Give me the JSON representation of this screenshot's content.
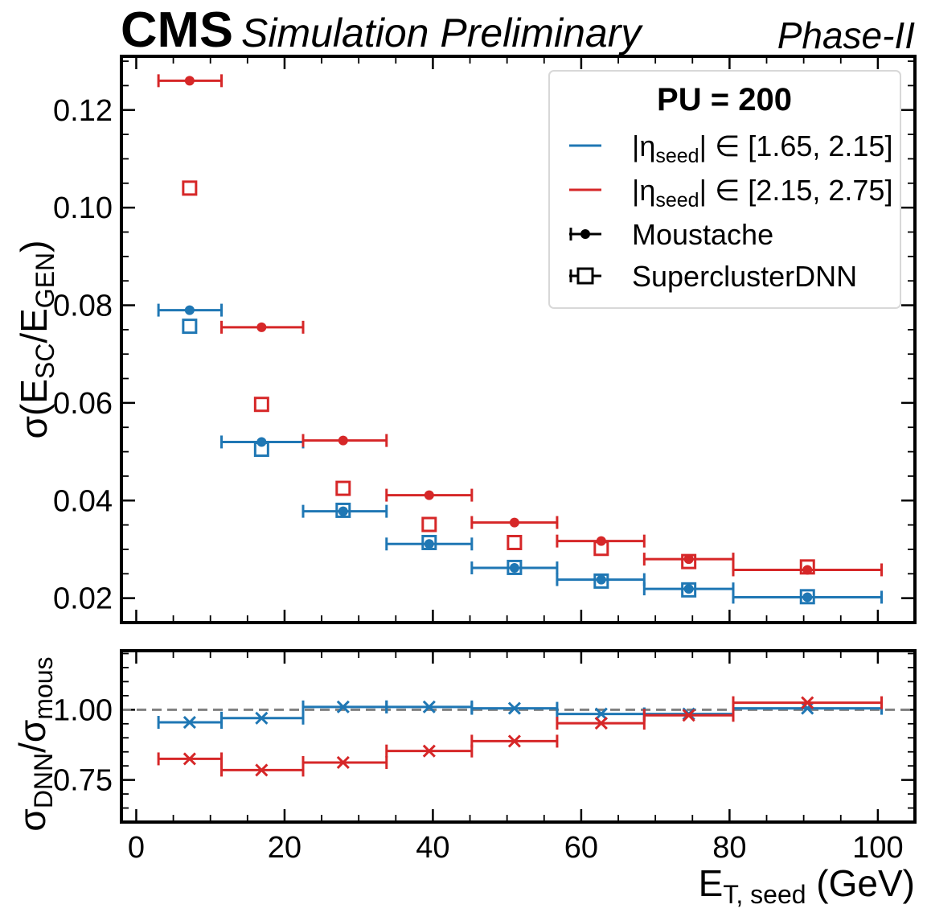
{
  "header": {
    "brand": "CMS",
    "subtitle": "Simulation Preliminary",
    "phase": "Phase-II"
  },
  "colors": {
    "blue": "#1f77b4",
    "red": "#d62728",
    "black": "#000000",
    "reference_line": "#808080"
  },
  "chart_data": [
    {
      "type": "scatter",
      "panel": "main",
      "ylabel": {
        "main": "σ(E",
        "sub1": "SC",
        "mid": "/E",
        "sub2": "GEN",
        "end": ")"
      },
      "xlim": [
        -2,
        105
      ],
      "ylim": [
        0.015,
        0.131
      ],
      "yticks": [
        0.02,
        0.04,
        0.06,
        0.08,
        0.1,
        0.12
      ],
      "ytick_labels": [
        "0.02",
        "0.04",
        "0.06",
        "0.08",
        "0.10",
        "0.12"
      ],
      "bins": [
        [
          3,
          11.5
        ],
        [
          11.5,
          22.5
        ],
        [
          22.5,
          33.75
        ],
        [
          33.75,
          45.25
        ],
        [
          45.25,
          56.75
        ],
        [
          56.75,
          68.5
        ],
        [
          68.5,
          80.5
        ],
        [
          80.5,
          100.5
        ]
      ],
      "centers": [
        7.2,
        16.9,
        27.9,
        39.5,
        51,
        62.7,
        74.5,
        90.5
      ],
      "series": [
        {
          "name": "Moustache |η_seed| ∈ [1.65, 2.15]",
          "color": "blue",
          "marker": "dot",
          "errorbars": true,
          "values": [
            0.079,
            0.052,
            0.0378,
            0.0311,
            0.0262,
            0.0238,
            0.0219,
            0.0202
          ]
        },
        {
          "name": "Moustache |η_seed| ∈ [2.15, 2.75]",
          "color": "red",
          "marker": "dot",
          "errorbars": true,
          "values": [
            0.126,
            0.0755,
            0.0523,
            0.0411,
            0.0355,
            0.0317,
            0.028,
            0.0258
          ],
          "skip_first_bin_for": []
        },
        {
          "name": "SuperclusterDNN |η_seed| ∈ [1.65, 2.15]",
          "color": "blue",
          "marker": "square",
          "errorbars": false,
          "values": [
            0.0757,
            0.0505,
            0.038,
            0.0314,
            0.0263,
            0.0235,
            0.0217,
            0.0203
          ]
        },
        {
          "name": "SuperclusterDNN |η_seed| ∈ [2.15, 2.75]",
          "color": "red",
          "marker": "square",
          "errorbars": false,
          "values": [
            0.104,
            0.0597,
            0.0425,
            0.0351,
            0.0314,
            0.0302,
            0.0275,
            0.0264
          ]
        }
      ],
      "legend": {
        "placement": "top-right",
        "title": "PU = 200",
        "entries": [
          {
            "label_prefix": "|η",
            "label_sub": "seed",
            "label_suffix": "| ∈ [1.65, 2.15]",
            "style": "line",
            "color": "blue"
          },
          {
            "label_prefix": "|η",
            "label_sub": "seed",
            "label_suffix": "| ∈ [2.15, 2.75]",
            "style": "line",
            "color": "red"
          },
          {
            "label": "Moustache",
            "style": "dot",
            "color": "black"
          },
          {
            "label": "SuperclusterDNN",
            "style": "square",
            "color": "black"
          }
        ]
      }
    },
    {
      "type": "scatter",
      "panel": "ratio",
      "ylabel": {
        "main": "σ",
        "sub1": "DNN",
        "mid": "/σ",
        "sub2": "mous"
      },
      "xlabel": {
        "main": "E",
        "sub": "T, seed",
        "end": " (GeV)"
      },
      "xlim": [
        -2,
        105
      ],
      "ylim": [
        0.6,
        1.21
      ],
      "xticks": [
        0,
        20,
        40,
        60,
        80,
        100
      ],
      "xtick_labels": [
        "0",
        "20",
        "40",
        "60",
        "80",
        "100"
      ],
      "yticks": [
        0.75,
        1.0
      ],
      "ytick_labels": [
        "0.75",
        "1.00"
      ],
      "reference_value": 1.0,
      "series": [
        {
          "name": "ratio |η_seed| ∈ [1.65, 2.15]",
          "color": "blue",
          "marker": "x",
          "values": [
            0.955,
            0.97,
            1.01,
            1.01,
            1.005,
            0.985,
            0.985,
            1.005
          ]
        },
        {
          "name": "ratio |η_seed| ∈ [2.15, 2.75]",
          "color": "red",
          "marker": "x",
          "values": [
            0.825,
            0.785,
            0.812,
            0.853,
            0.888,
            0.952,
            0.98,
            1.025
          ]
        }
      ]
    }
  ]
}
